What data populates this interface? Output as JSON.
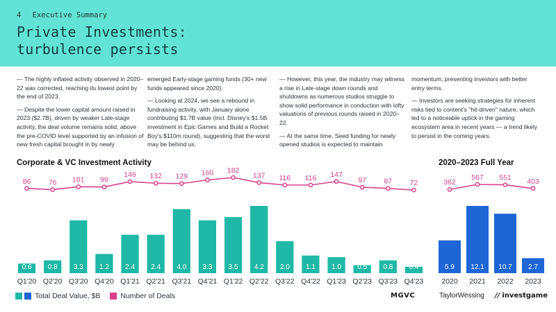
{
  "header": {
    "page_number": "4",
    "section": "Executive Summary",
    "title_line1": "Private Investments:",
    "title_line2": "turbulence persists"
  },
  "columns": [
    {
      "paragraphs": [
        "— The highly inflated activity observed in 2020–22 was corrected, reaching its lowest point by the end of 2023.",
        "— Despite the lower capital amount raised in 2023 ($2.7B), driven by weaker Late-stage activity, the deal volume remains solid, above the pre-COVID level supported by an infusion of new fresh capital brought in by newly"
      ]
    },
    {
      "paragraphs": [
        "emerged Early-stage gaming funds (30+ new funds appeared since 2020).",
        "— Looking at 2024, we see a rebound in fundraising activity, with January alone contributing $1.7B value (incl. Disney's $1.5B investment in Epic Games and Build a Rocket Boy's $110m round), suggesting that the worst may be behind us."
      ]
    },
    {
      "paragraphs": [
        "— However, this year, the industry may witness a rise in Late-stage down rounds and shutdowns as numerous studios struggle to show solid performance in conduction with lofty valuations of previous rounds raised in 2020–22.",
        "— At the same time, Seed funding for newly opened studios is expected to maintain"
      ]
    },
    {
      "paragraphs": [
        "momentum, presenting investors with better entry terms.",
        "— Investors are seeking strategies for inherent risks tied to content's \"hit-driven\" nature, which led to a noticeable uptick in the gaming ecosystem area in recent years — a trend likely to persist in the coming years."
      ]
    }
  ],
  "chart_data": [
    {
      "type": "bar",
      "title": "Corporate & VC Investment Activity",
      "categories": [
        "Q1'20",
        "Q2'20",
        "Q3'20",
        "Q4'20",
        "Q1'21",
        "Q2'21",
        "Q3'21",
        "Q4'21",
        "Q1'22",
        "Q2'22",
        "Q3'22",
        "Q4'22",
        "Q1'23",
        "Q2'23",
        "Q3'23",
        "Q4'23"
      ],
      "series": [
        {
          "name": "Total Deal Value, $B",
          "kind": "bar",
          "values": [
            0.6,
            0.8,
            3.3,
            1.2,
            2.4,
            2.4,
            4.0,
            3.3,
            3.5,
            4.2,
            2.0,
            1.1,
            1.0,
            0.5,
            0.8,
            0.4
          ]
        },
        {
          "name": "Number of Deals",
          "kind": "line",
          "values": [
            86,
            76,
            101,
            99,
            146,
            132,
            129,
            160,
            182,
            137,
            116,
            116,
            147,
            97,
            87,
            72
          ]
        }
      ],
      "bar_color": "#1fb8a6",
      "line_color": "#d6408c",
      "ylim_bar": [
        0,
        4.2
      ],
      "ylim_line": [
        0,
        182
      ]
    },
    {
      "type": "bar",
      "title": "2020–2023 Full Year",
      "categories": [
        "2020",
        "2021",
        "2022",
        "2023"
      ],
      "series": [
        {
          "name": "Total Deal Value, $B",
          "kind": "bar",
          "values": [
            5.9,
            12.1,
            10.7,
            2.7
          ]
        },
        {
          "name": "Number of Deals",
          "kind": "line",
          "values": [
            362,
            567,
            551,
            403
          ]
        }
      ],
      "bar_color": "#1e66d6",
      "line_color": "#d6408c",
      "ylim_bar": [
        0,
        12.1
      ],
      "ylim_line": [
        0,
        567
      ]
    }
  ],
  "legend": {
    "value_label": "Total Deal Value, $B",
    "deals_label": "Number of Deals",
    "teal": "#1fb8a6",
    "blue": "#1e66d6",
    "pink": "#d6408c"
  },
  "logos": {
    "logo1": "MGVC",
    "logo2": "TaylorWessing",
    "logo3": "investgame"
  }
}
